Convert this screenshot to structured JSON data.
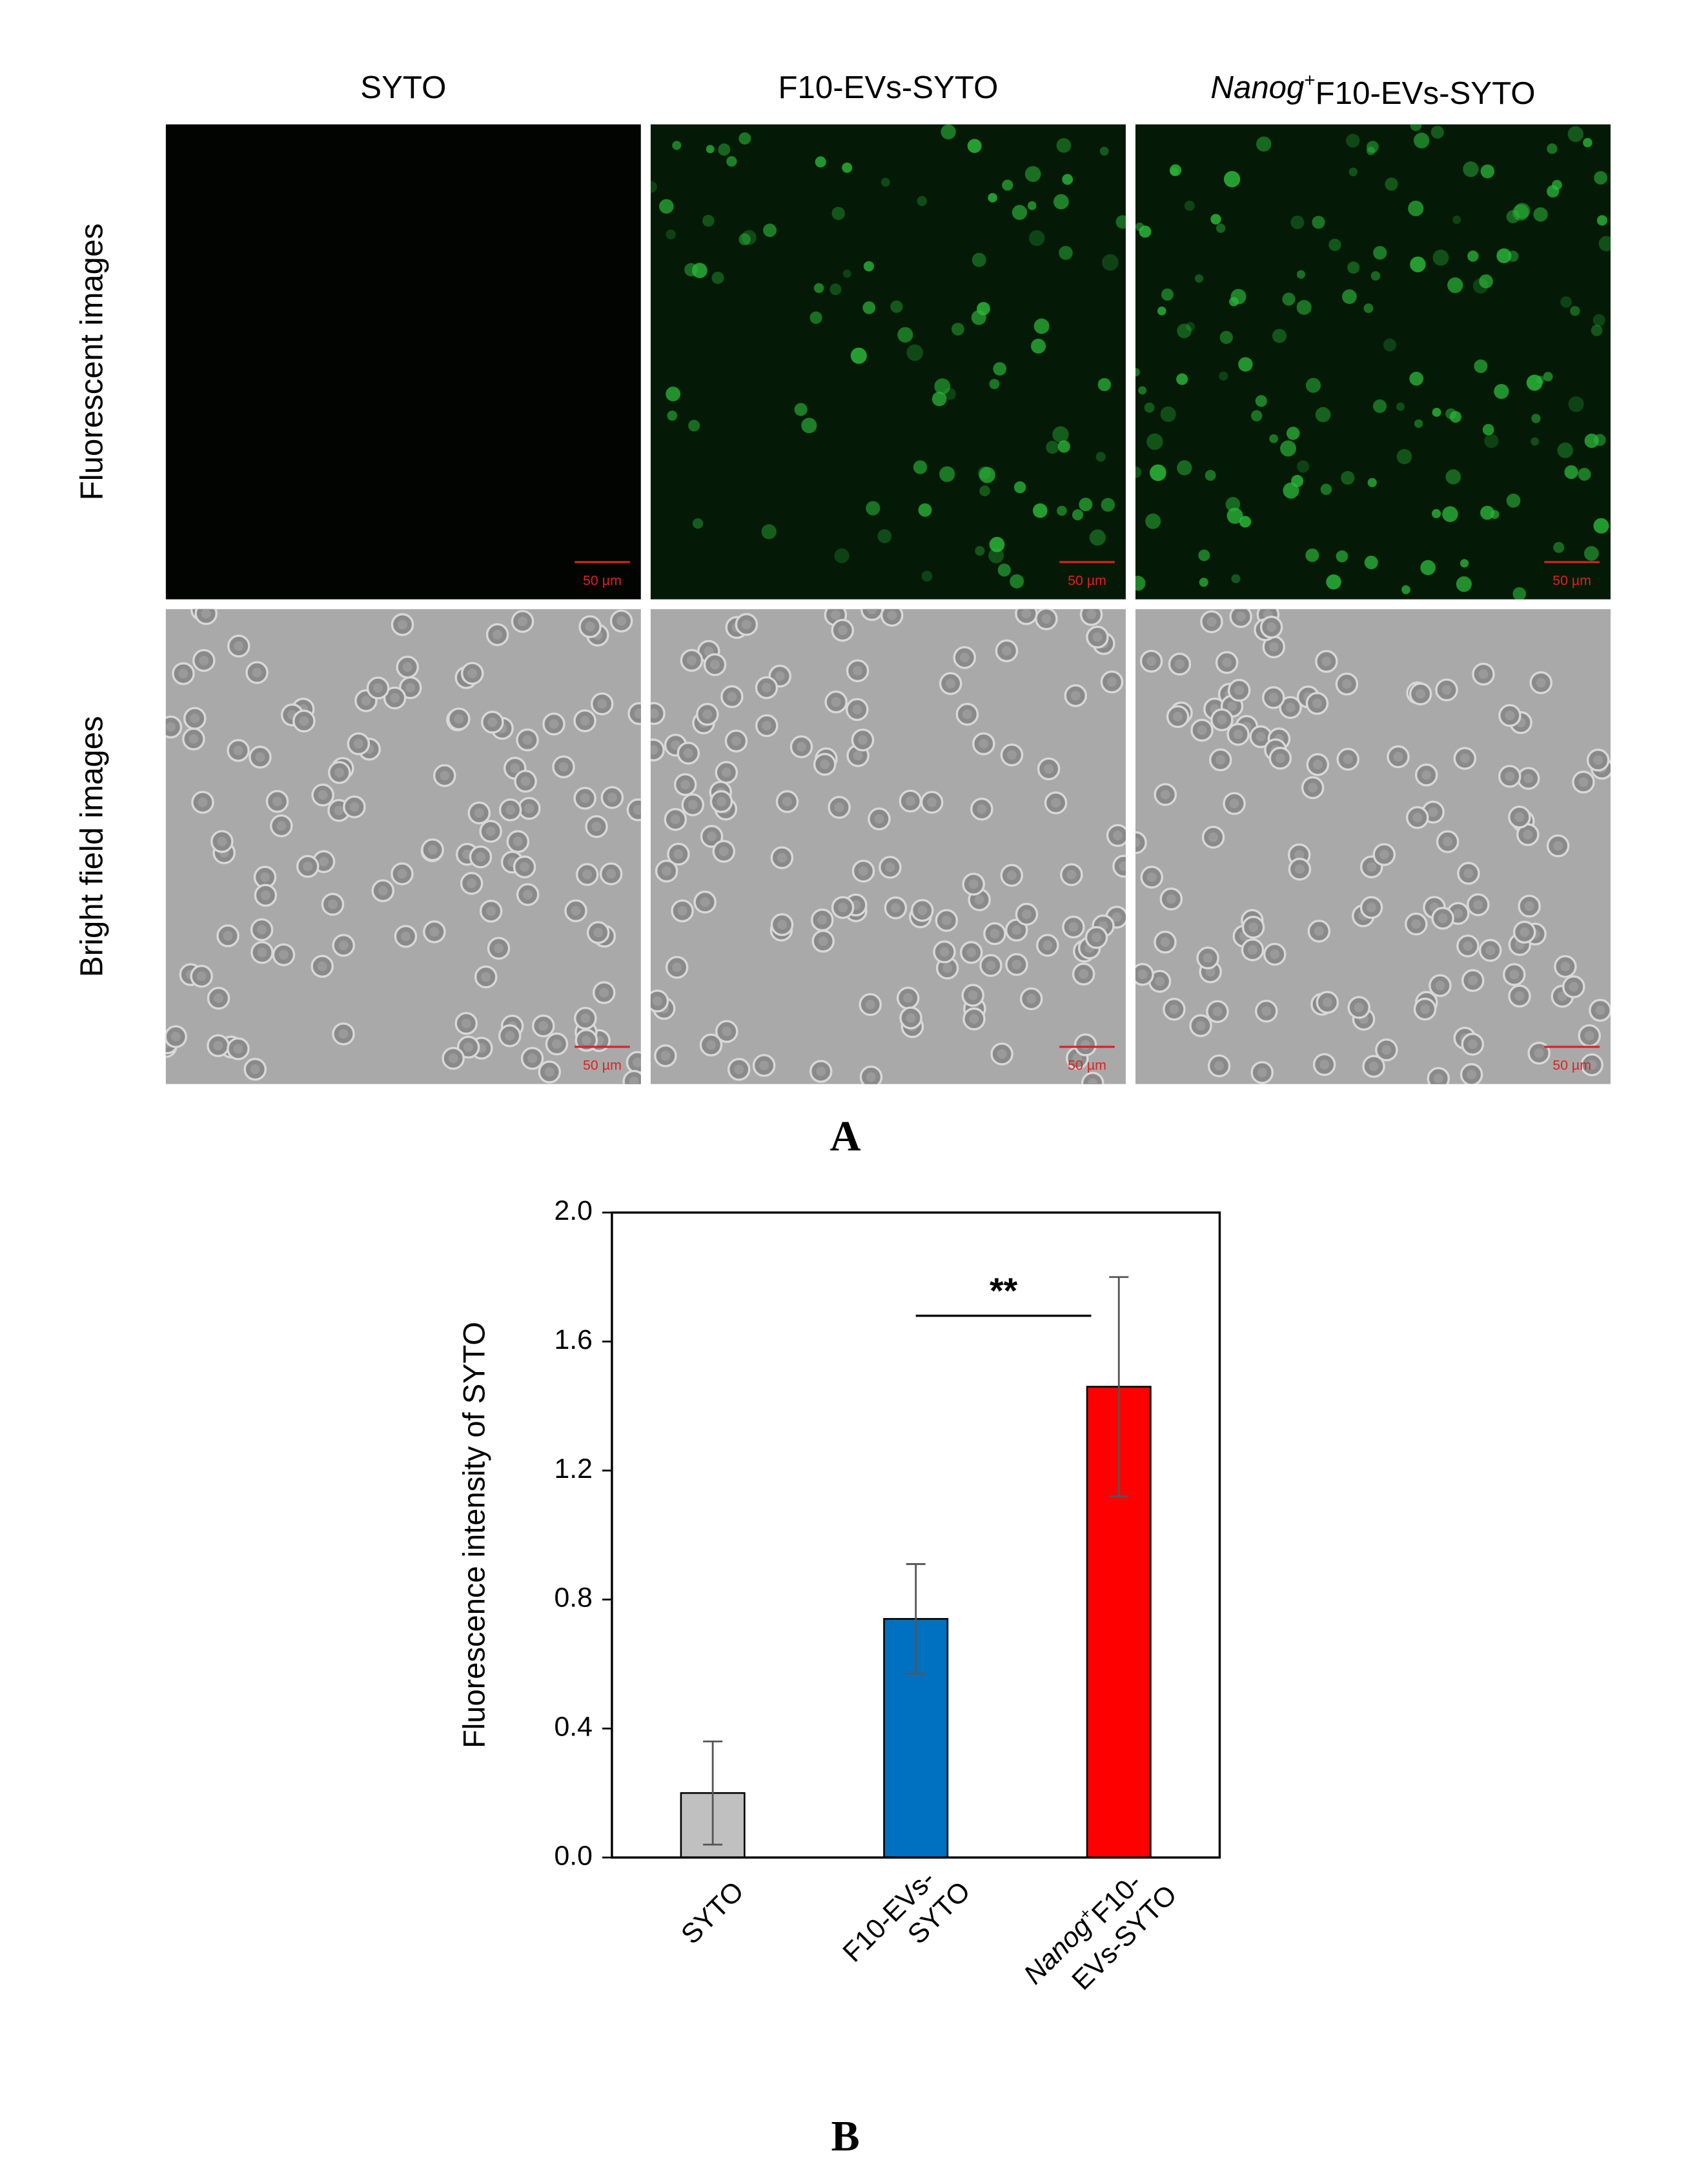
{
  "figure": {
    "column_titles": [
      "SYTO",
      "F10-EVs-SYTO",
      [
        "Nanog",
        "+",
        "F10-EVs-SYTO"
      ]
    ],
    "row_labels": [
      "Fluorescent images",
      "Bright field images"
    ],
    "scale_bar": "50 µm",
    "panel_labels": [
      "A",
      "B"
    ]
  },
  "chart_data": {
    "type": "bar",
    "categories": [
      [
        "SYTO"
      ],
      [
        "F10-EVs-",
        "SYTO"
      ],
      [
        [
          "Nanog",
          "+",
          "F10-"
        ],
        "EVs-SYTO"
      ]
    ],
    "values": [
      0.2,
      0.74,
      1.46
    ],
    "errors": [
      0.16,
      0.17,
      0.34
    ],
    "colors": [
      "#c0c0c0",
      "#0070c0",
      "#ff0000"
    ],
    "y_label": "Fluorescence intensity of SYTO",
    "ylim": [
      0,
      2
    ],
    "yticks": [
      {
        "value": 0,
        "label": "0.0"
      },
      0.4,
      0.8,
      1.2,
      1.6,
      {
        "value": 2,
        "label": "2.0"
      }
    ],
    "significance": {
      "label": "**",
      "y": 1.68
    }
  }
}
